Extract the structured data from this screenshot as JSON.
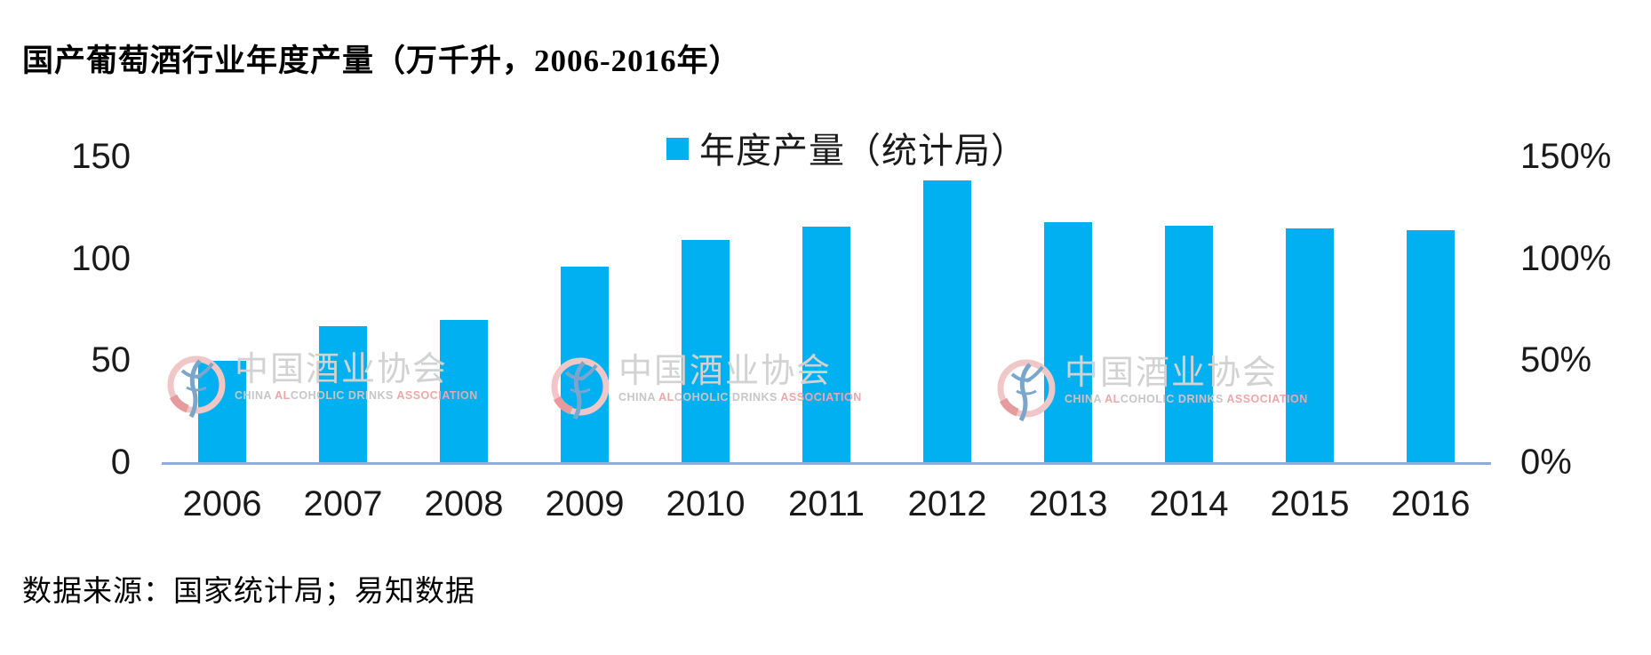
{
  "title": "国产葡萄酒行业年度产量（万千升，2006-2016年）",
  "source": "数据来源：国家统计局；易知数据",
  "legend": {
    "label": "年度产量（统计局）"
  },
  "axes": {
    "left_ticks": [
      "150",
      "100",
      "50",
      "0"
    ],
    "right_ticks": [
      "150%",
      "100%",
      "50%",
      "0%"
    ]
  },
  "watermark": {
    "cn": "中国酒业协会",
    "en_parts": [
      {
        "t": "CHINA ",
        "c": "g"
      },
      {
        "t": "AL",
        "c": "r"
      },
      {
        "t": "COHOLIC ",
        "c": "g"
      },
      {
        "t": "DRINKS ",
        "c": "g"
      },
      {
        "t": "ASSOCIATION",
        "c": "r"
      }
    ]
  },
  "colors": {
    "bar": "#00B0F0",
    "axis_line": "#8FAADC",
    "legend_swatch": "#00B0F0",
    "watermark_ring": "#F0C6C6",
    "watermark_figure": "#7BA6CC",
    "watermark_wedge": "#E59B9B"
  },
  "chart_data": {
    "type": "bar",
    "title": "国产葡萄酒行业年度产量（万千升，2006-2016年）",
    "legend_entries": [
      "年度产量（统计局）"
    ],
    "legend_position": "top-center",
    "categories": [
      "2006",
      "2007",
      "2008",
      "2009",
      "2010",
      "2011",
      "2012",
      "2013",
      "2014",
      "2015",
      "2016"
    ],
    "series": [
      {
        "name": "年度产量（统计局）",
        "values": [
          49.5,
          66.5,
          69.8,
          96.0,
          108.9,
          115.7,
          138.2,
          117.8,
          116.1,
          114.8,
          113.7
        ]
      }
    ],
    "xlabel": "",
    "ylabel": "",
    "ylim": [
      0,
      150
    ],
    "left_axis_tick_values": [
      0,
      50,
      100,
      150
    ],
    "right_axis_tick_labels": [
      "0%",
      "50%",
      "100%",
      "150%"
    ],
    "right_ylim_percent": [
      0,
      150
    ],
    "grid": false,
    "bar_color": "#00B0F0",
    "source_note": "数据来源：国家统计局；易知数据"
  }
}
